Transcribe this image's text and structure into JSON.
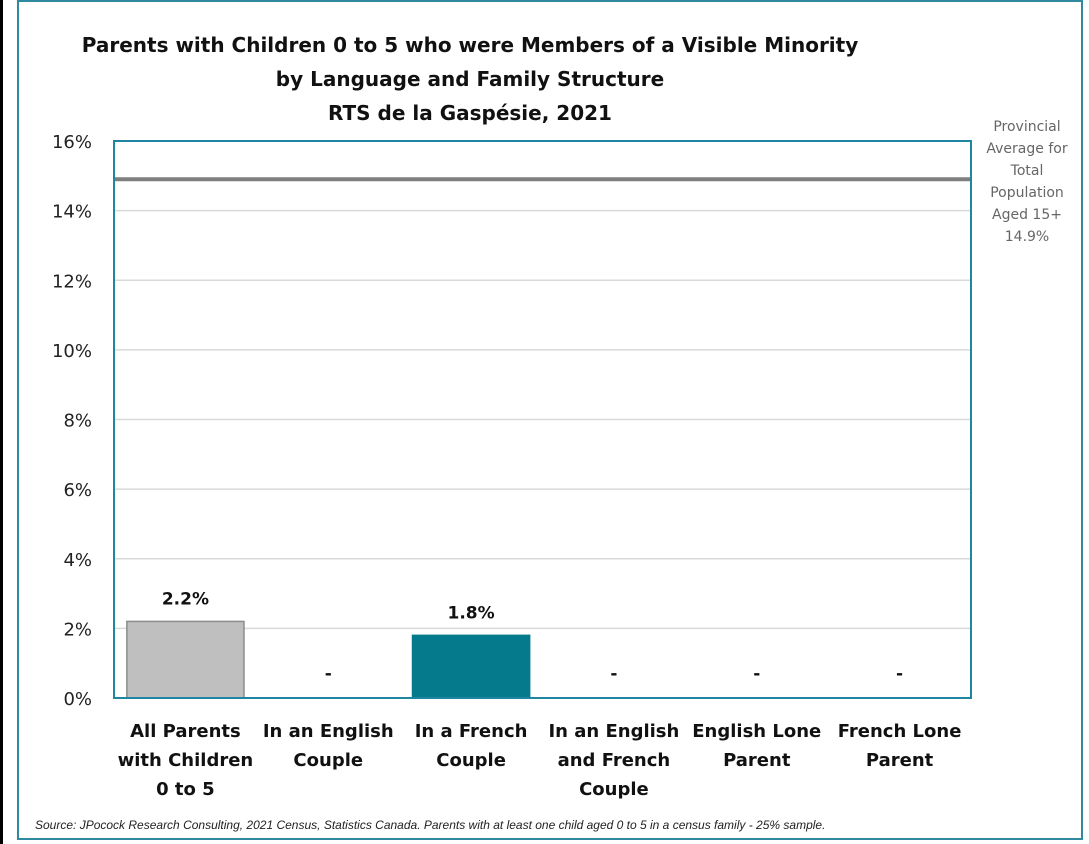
{
  "chart_data": {
    "type": "bar",
    "title_lines": [
      "Parents with Children 0 to 5 who were Members of a Visible Minority",
      "by Language and Family Structure",
      "RTS de la Gaspésie, 2021"
    ],
    "categories": [
      [
        "All Parents",
        "with Children",
        "0 to 5"
      ],
      [
        "In an English",
        "Couple"
      ],
      [
        "In a French",
        "Couple"
      ],
      [
        "In an English",
        "and French",
        "Couple"
      ],
      [
        "English Lone",
        "Parent"
      ],
      [
        "French Lone",
        "Parent"
      ]
    ],
    "values": [
      2.2,
      null,
      1.8,
      null,
      null,
      null
    ],
    "data_labels": [
      "2.2%",
      "-",
      "1.8%",
      "-",
      "-",
      "-"
    ],
    "bar_colors": [
      "#bfbfbf",
      null,
      "#047a8c",
      null,
      null,
      null
    ],
    "ylim": [
      0,
      16
    ],
    "yticks": [
      0,
      2,
      4,
      6,
      8,
      10,
      12,
      14,
      16
    ],
    "ytick_labels": [
      "0%",
      "2%",
      "4%",
      "6%",
      "8%",
      "10%",
      "12%",
      "14%",
      "16%"
    ],
    "grid": true,
    "reference_line": {
      "value": 14.9,
      "color": "#7f7f7f",
      "label_lines": [
        "Provincial",
        "Average for",
        "Total",
        "Population",
        "Aged 15+",
        "14.9%"
      ]
    },
    "source": "Source: JPocock Research Consulting, 2021 Census, Statistics Canada. Parents with at least one child aged 0 to 5 in a census family - 25% sample."
  }
}
